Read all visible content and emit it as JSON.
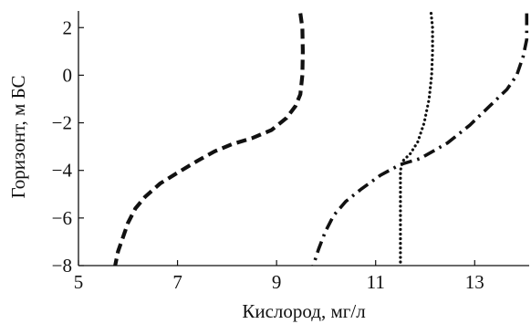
{
  "chart_data": {
    "type": "line",
    "title": "",
    "xlabel": "Кислород, мг/л",
    "ylabel": "Горизонт, м БС",
    "xlim": [
      5,
      14.1
    ],
    "ylim": [
      -8,
      2.7
    ],
    "xticks": [
      5,
      7,
      9,
      11,
      13
    ],
    "yticks": [
      2,
      0,
      -2,
      -4,
      -6,
      -8
    ],
    "xtick_labels": [
      "5",
      "7",
      "9",
      "11",
      "13"
    ],
    "ytick_labels": [
      "2",
      "0",
      "−2",
      "−4",
      "−6",
      "−8"
    ],
    "grid": false,
    "legend": "none",
    "series": [
      {
        "style": "dashed",
        "points": [
          [
            9.48,
            2.6
          ],
          [
            9.52,
            2.0
          ],
          [
            9.53,
            1.0
          ],
          [
            9.52,
            0.0
          ],
          [
            9.48,
            -0.8
          ],
          [
            9.38,
            -1.3
          ],
          [
            9.2,
            -1.8
          ],
          [
            8.9,
            -2.3
          ],
          [
            8.5,
            -2.65
          ],
          [
            8.1,
            -2.9
          ],
          [
            7.75,
            -3.2
          ],
          [
            7.4,
            -3.6
          ],
          [
            7.0,
            -4.1
          ],
          [
            6.65,
            -4.55
          ],
          [
            6.35,
            -5.1
          ],
          [
            6.15,
            -5.6
          ],
          [
            6.0,
            -6.2
          ],
          [
            5.9,
            -6.8
          ],
          [
            5.8,
            -7.4
          ],
          [
            5.74,
            -8.0
          ]
        ]
      },
      {
        "style": "dotted",
        "points": [
          [
            12.12,
            2.6
          ],
          [
            12.15,
            2.0
          ],
          [
            12.15,
            1.0
          ],
          [
            12.13,
            0.0
          ],
          [
            12.08,
            -1.0
          ],
          [
            11.98,
            -2.0
          ],
          [
            11.85,
            -2.8
          ],
          [
            11.7,
            -3.3
          ],
          [
            11.55,
            -3.6
          ],
          [
            11.5,
            -4.0
          ],
          [
            11.5,
            -5.0
          ],
          [
            11.5,
            -6.0
          ],
          [
            11.5,
            -7.0
          ],
          [
            11.5,
            -8.0
          ]
        ]
      },
      {
        "style": "dash-dot",
        "points": [
          [
            14.05,
            2.6
          ],
          [
            14.05,
            1.5
          ],
          [
            13.98,
            0.8
          ],
          [
            13.85,
            0.0
          ],
          [
            13.65,
            -0.6
          ],
          [
            13.3,
            -1.3
          ],
          [
            12.9,
            -2.1
          ],
          [
            12.45,
            -2.85
          ],
          [
            11.9,
            -3.5
          ],
          [
            11.5,
            -3.75
          ],
          [
            11.1,
            -4.2
          ],
          [
            10.7,
            -4.8
          ],
          [
            10.4,
            -5.3
          ],
          [
            10.15,
            -5.9
          ],
          [
            9.98,
            -6.6
          ],
          [
            9.85,
            -7.3
          ],
          [
            9.74,
            -8.0
          ]
        ]
      }
    ]
  }
}
